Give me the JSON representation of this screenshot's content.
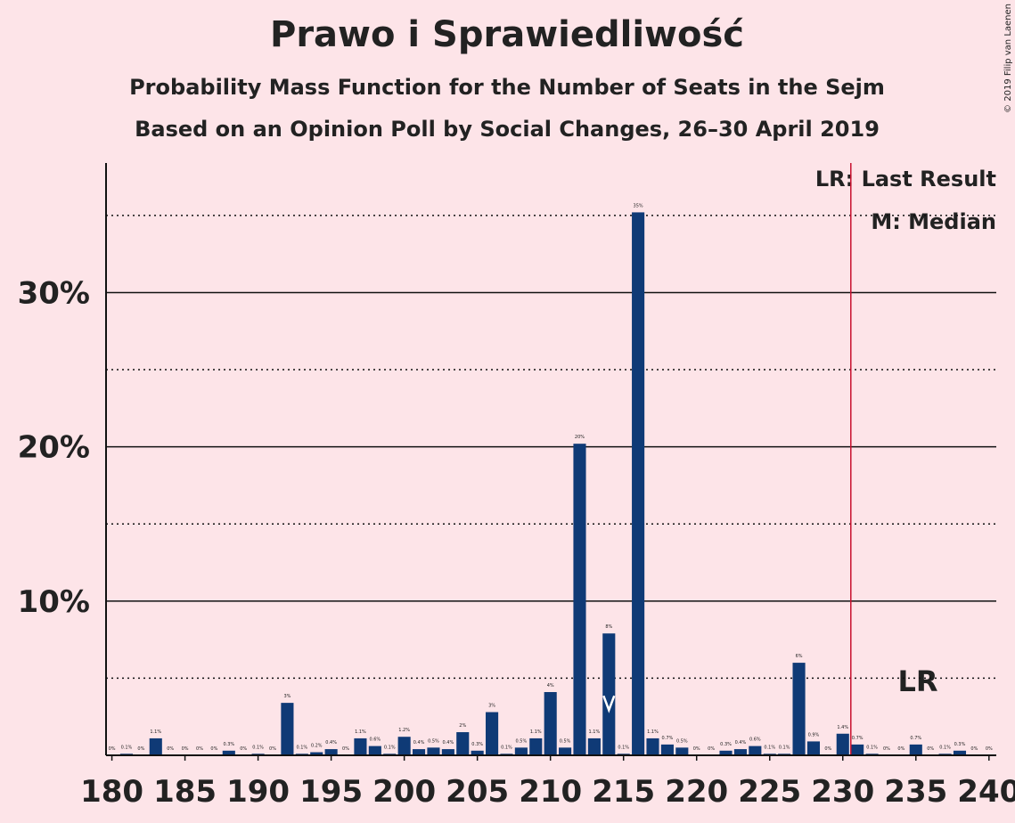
{
  "chart_data": {
    "type": "bar",
    "title": "Prawo i Sprawiedliwość",
    "subtitle": "Probability Mass Function for the Number of Seats in the Sejm",
    "subtitle2": "Based on an Opinion Poll by Social Changes, 26–30 April 2019",
    "copyright": "© 2019 Filip van Laenen",
    "legend": [
      "LR: Last Result",
      "M: Median"
    ],
    "last_result_label": "LR",
    "x": [
      180,
      181,
      182,
      183,
      184,
      185,
      186,
      187,
      188,
      189,
      190,
      191,
      192,
      193,
      194,
      195,
      196,
      197,
      198,
      199,
      200,
      201,
      202,
      203,
      204,
      205,
      206,
      207,
      208,
      209,
      210,
      211,
      212,
      213,
      214,
      215,
      216,
      217,
      218,
      219,
      220,
      221,
      222,
      223,
      224,
      225,
      226,
      227,
      228,
      229,
      230,
      231,
      232,
      233,
      234,
      235,
      236,
      237,
      238,
      239,
      240
    ],
    "values": [
      0,
      0.1,
      0,
      1.1,
      0,
      0,
      0,
      0,
      0.3,
      0,
      0.1,
      0,
      3.4,
      0.1,
      0.2,
      0.4,
      0,
      1.1,
      0.6,
      0.1,
      1.2,
      0.4,
      0.5,
      0.4,
      1.5,
      0.3,
      2.8,
      0.1,
      0.5,
      1.1,
      4.1,
      0.5,
      20.2,
      1.1,
      7.9,
      0.1,
      35.2,
      1.1,
      0.7,
      0.5,
      0,
      0,
      0.3,
      0.4,
      0.6,
      0.1,
      0.1,
      6.0,
      0.9,
      0,
      1.4,
      0.7,
      0.1,
      0,
      0,
      0.7,
      0,
      0.1,
      0.3,
      0,
      0
    ],
    "value_labels": [
      "0%",
      "0.1%",
      "0%",
      "1.1%",
      "0%",
      "0%",
      "0%",
      "0%",
      "0.3%",
      "0%",
      "0.1%",
      "0%",
      "3%",
      "0.1%",
      "0.2%",
      "0.4%",
      "0%",
      "1.1%",
      "0.6%",
      "0.1%",
      "1.2%",
      "0.4%",
      "0.5%",
      "0.4%",
      "2%",
      "0.3%",
      "3%",
      "0.1%",
      "0.5%",
      "1.1%",
      "4%",
      "0.5%",
      "20%",
      "1.1%",
      "8%",
      "0.1%",
      "35%",
      "1.1%",
      "0.7%",
      "0.5%",
      "0%",
      "0%",
      "0.3%",
      "0.4%",
      "0.6%",
      "0.1%",
      "0.1%",
      "6%",
      "0.9%",
      "0%",
      "1.4%",
      "0.7%",
      "0.1%",
      "0%",
      "0%",
      "0.7%",
      "0%",
      "0.1%",
      "0.3%",
      "0%",
      "0%"
    ],
    "color": "#0f3a76",
    "median": 214,
    "last_result": 231,
    "last_result_color": "#c8102e",
    "xlim": [
      179.6,
      240.5
    ],
    "xticks": [
      180,
      185,
      190,
      195,
      200,
      205,
      210,
      215,
      220,
      225,
      230,
      235,
      240
    ],
    "ylim": [
      0,
      38.4
    ],
    "yticks": [
      {
        "value": 10,
        "label": "10%"
      },
      {
        "value": 20,
        "label": "20%"
      },
      {
        "value": 30,
        "label": "30%"
      }
    ],
    "minor_yticks": [
      5,
      15,
      25,
      35
    ],
    "grid": true
  }
}
